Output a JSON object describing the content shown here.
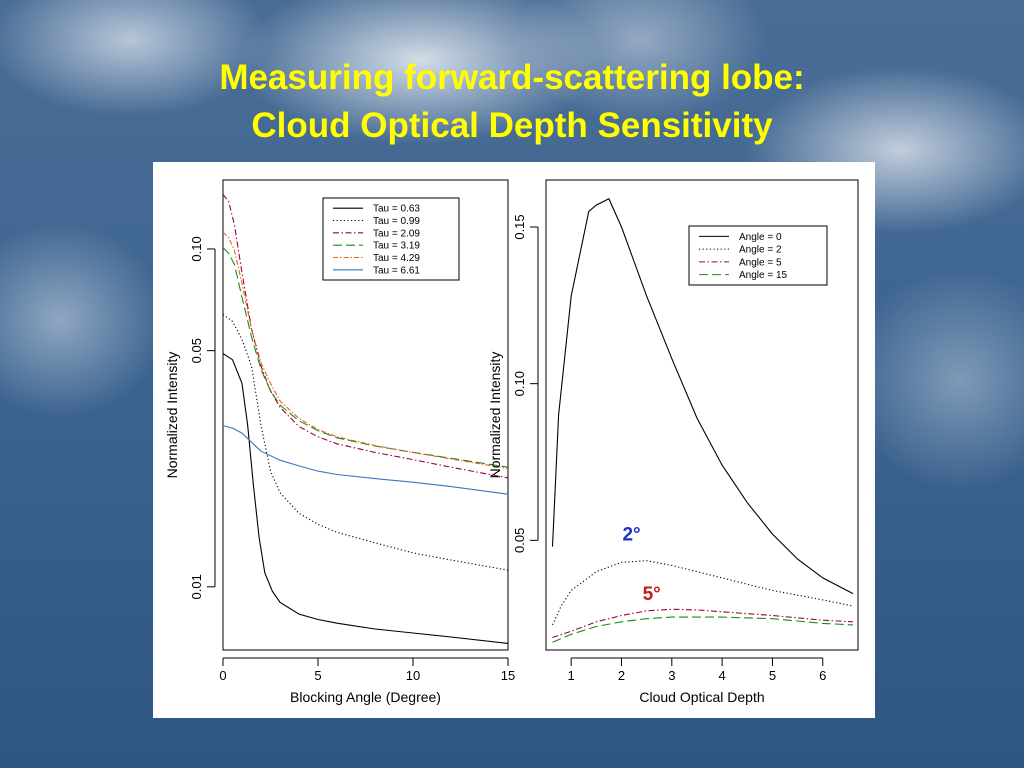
{
  "slide": {
    "title_line1": "Measuring forward-scattering lobe:",
    "title_line2": "Cloud Optical Depth Sensitivity"
  },
  "colors": {
    "title": "#ffff00",
    "annotation_2deg": "#1b2fcf",
    "annotation_5deg": "#c0201a"
  },
  "chart_data": [
    {
      "type": "line",
      "xlabel": "Blocking Angle (Degree)",
      "ylabel": "Normalized Intensity",
      "y_scale": "log",
      "xlim": [
        0,
        15
      ],
      "ylim": [
        0.0065,
        0.16
      ],
      "xticks": [
        "0",
        "5",
        "10",
        "15"
      ],
      "yticks": [
        "0.01",
        "0.05",
        "0.10"
      ],
      "legend_position": "top-right",
      "series": [
        {
          "name": "Tau = 0.63",
          "color": "#000000",
          "dash": "",
          "x": [
            0,
            0.5,
            1,
            1.3,
            1.6,
            1.9,
            2.2,
            2.6,
            3,
            4,
            5,
            6,
            8,
            10,
            12,
            15
          ],
          "y": [
            0.049,
            0.047,
            0.04,
            0.03,
            0.02,
            0.014,
            0.011,
            0.0097,
            0.009,
            0.0083,
            0.008,
            0.0078,
            0.0075,
            0.0073,
            0.0071,
            0.0068
          ]
        },
        {
          "name": "Tau = 0.99",
          "color": "#000000",
          "dash": "1.2 2.4",
          "x": [
            0,
            0.5,
            1,
            1.5,
            2,
            2.5,
            3,
            4,
            5,
            6,
            8,
            10,
            12,
            15
          ],
          "y": [
            0.064,
            0.061,
            0.054,
            0.045,
            0.03,
            0.022,
            0.019,
            0.0165,
            0.0153,
            0.0145,
            0.0135,
            0.0126,
            0.012,
            0.0112
          ]
        },
        {
          "name": "Tau = 2.09",
          "color": "#a0003c",
          "dash": "6 2.5 1.5 2.5",
          "x": [
            0,
            0.3,
            0.6,
            1,
            1.5,
            2,
            2.5,
            3,
            4,
            5,
            6,
            8,
            10,
            12,
            15
          ],
          "y": [
            0.145,
            0.138,
            0.118,
            0.085,
            0.058,
            0.045,
            0.038,
            0.034,
            0.0298,
            0.0278,
            0.0265,
            0.025,
            0.0238,
            0.0226,
            0.021
          ]
        },
        {
          "name": "Tau = 3.19",
          "color": "#1a8c1a",
          "dash": "9 4",
          "x": [
            0,
            0.3,
            0.6,
            1,
            1.5,
            2,
            2.5,
            3,
            4,
            5,
            6,
            8,
            10,
            12,
            15
          ],
          "y": [
            0.101,
            0.097,
            0.09,
            0.072,
            0.055,
            0.044,
            0.038,
            0.0345,
            0.031,
            0.029,
            0.0276,
            0.0261,
            0.025,
            0.024,
            0.0226
          ]
        },
        {
          "name": "Tau = 4.29",
          "color": "#e8641a",
          "dash": "5 2 1.5 2",
          "x": [
            0,
            0.3,
            0.6,
            1,
            1.5,
            2,
            2.5,
            3,
            4,
            5,
            6,
            8,
            10,
            12,
            15
          ],
          "y": [
            0.112,
            0.108,
            0.099,
            0.079,
            0.058,
            0.046,
            0.04,
            0.0355,
            0.0315,
            0.0292,
            0.0278,
            0.0262,
            0.025,
            0.0239,
            0.0224
          ]
        },
        {
          "name": "Tau = 6.61",
          "color": "#3a76c4",
          "dash": "",
          "x": [
            0,
            0.5,
            1,
            1.5,
            2,
            3,
            4,
            5,
            6,
            8,
            10,
            12,
            15
          ],
          "y": [
            0.03,
            0.0295,
            0.0285,
            0.0268,
            0.0252,
            0.0237,
            0.0228,
            0.022,
            0.0215,
            0.0209,
            0.0204,
            0.0198,
            0.0188
          ]
        }
      ]
    },
    {
      "type": "line",
      "xlabel": "Cloud Optical Depth",
      "ylabel": "Normalized Intensity",
      "xlim": [
        0.5,
        6.7
      ],
      "ylim": [
        0.015,
        0.165
      ],
      "xticks": [
        "1",
        "2",
        "3",
        "4",
        "5",
        "6"
      ],
      "yticks": [
        "0.05",
        "0.10",
        "0.15"
      ],
      "legend_position": "top-right",
      "annotations": [
        "2°",
        "5°"
      ],
      "series": [
        {
          "name": "Angle = 0",
          "color": "#000000",
          "dash": "",
          "x": [
            0.63,
            0.75,
            1.0,
            1.35,
            1.5,
            1.75,
            2.0,
            2.5,
            3.0,
            3.5,
            4.0,
            4.5,
            5.0,
            5.5,
            6.0,
            6.6
          ],
          "y": [
            0.048,
            0.09,
            0.128,
            0.155,
            0.157,
            0.159,
            0.15,
            0.128,
            0.108,
            0.089,
            0.074,
            0.062,
            0.052,
            0.044,
            0.038,
            0.033
          ]
        },
        {
          "name": "Angle = 2",
          "color": "#000000",
          "dash": "1.2 2.4",
          "x": [
            0.63,
            0.8,
            1.0,
            1.5,
            2.0,
            2.5,
            3.0,
            3.5,
            4.0,
            5.0,
            6.0,
            6.6
          ],
          "y": [
            0.023,
            0.029,
            0.034,
            0.04,
            0.043,
            0.0435,
            0.042,
            0.04,
            0.038,
            0.034,
            0.031,
            0.029
          ]
        },
        {
          "name": "Angle = 5",
          "color": "#a0003c",
          "dash": "6 2.5 1.5 2.5",
          "x": [
            0.63,
            1.0,
            1.5,
            2.0,
            2.5,
            3.0,
            3.5,
            4.0,
            5.0,
            6.0,
            6.6
          ],
          "y": [
            0.019,
            0.021,
            0.024,
            0.026,
            0.0275,
            0.028,
            0.0278,
            0.0272,
            0.026,
            0.0245,
            0.024
          ]
        },
        {
          "name": "Angle = 15",
          "color": "#1a8c1a",
          "dash": "9 4",
          "x": [
            0.63,
            1.0,
            1.5,
            2.0,
            2.5,
            3.0,
            3.5,
            4.0,
            5.0,
            6.0,
            6.6
          ],
          "y": [
            0.0175,
            0.02,
            0.0225,
            0.024,
            0.025,
            0.0255,
            0.0255,
            0.0255,
            0.025,
            0.0235,
            0.023
          ]
        }
      ]
    }
  ]
}
